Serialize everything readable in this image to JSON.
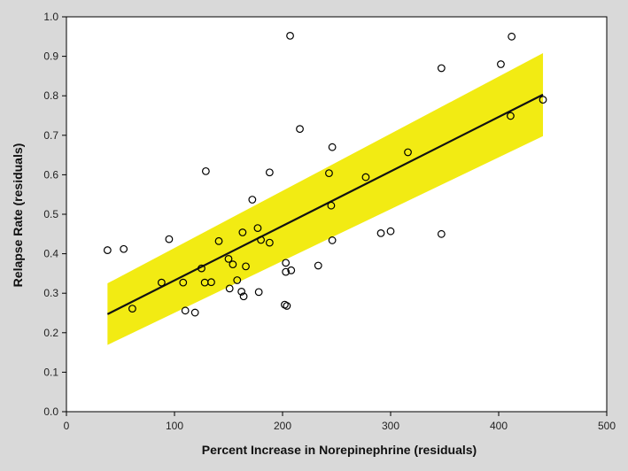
{
  "chart_data": {
    "type": "scatter",
    "xlabel": "Percent Increase in Norepinephrine (residuals)",
    "ylabel": "Relapse Rate (residuals)",
    "xlim": [
      0,
      500
    ],
    "ylim": [
      0.0,
      1.0
    ],
    "x_ticks": [
      "0",
      "100",
      "200",
      "300",
      "400",
      "500"
    ],
    "y_ticks": [
      "0.0",
      "0.1",
      "0.2",
      "0.3",
      "0.4",
      "0.5",
      "0.6",
      "0.7",
      "0.8",
      "0.9",
      "1.0"
    ],
    "grid": false,
    "series": [
      {
        "kind": "points",
        "x": [
          38,
          53,
          61,
          88,
          95,
          108,
          110,
          119,
          125,
          128,
          129,
          134,
          141,
          150,
          151,
          154,
          158,
          162,
          163,
          164,
          166,
          172,
          177,
          178,
          180,
          188,
          188,
          202,
          203,
          203,
          204,
          208,
          207,
          216,
          233,
          243,
          245,
          246,
          246,
          277,
          291,
          300,
          316,
          347,
          347,
          402,
          411,
          412,
          441
        ],
        "y": [
          0.409,
          0.412,
          0.261,
          0.327,
          0.437,
          0.327,
          0.256,
          0.251,
          0.363,
          0.327,
          0.609,
          0.328,
          0.432,
          0.387,
          0.312,
          0.373,
          0.333,
          0.304,
          0.454,
          0.292,
          0.368,
          0.537,
          0.465,
          0.303,
          0.435,
          0.606,
          0.428,
          0.271,
          0.377,
          0.354,
          0.268,
          0.358,
          0.952,
          0.716,
          0.37,
          0.604,
          0.522,
          0.67,
          0.434,
          0.594,
          0.452,
          0.457,
          0.657,
          0.87,
          0.45,
          0.88,
          0.749,
          0.95,
          0.79
        ]
      },
      {
        "kind": "fit_line",
        "x": [
          38,
          441
        ],
        "y": [
          0.247,
          0.803
        ]
      },
      {
        "kind": "confidence_band",
        "x": [
          38,
          441
        ],
        "lower": [
          0.169,
          0.698
        ],
        "upper": [
          0.325,
          0.908
        ]
      }
    ],
    "colors": {
      "page_background": "#d9d9d9",
      "plot_background": "#ffffff",
      "band": "#f2eb13",
      "fit_line": "#111111",
      "points": "#000000"
    }
  }
}
